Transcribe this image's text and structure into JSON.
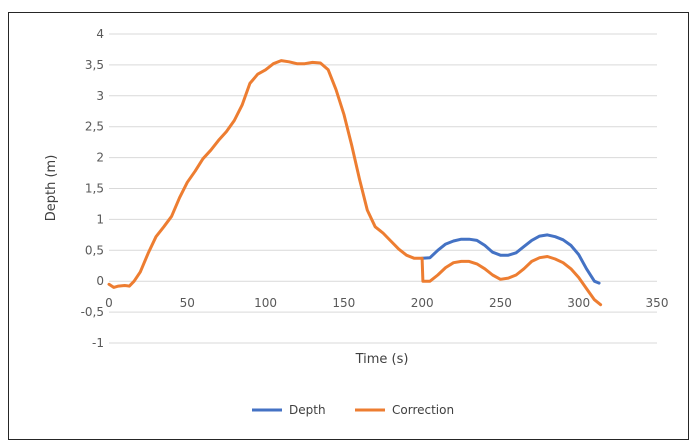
{
  "chart_data": {
    "type": "line",
    "title": "",
    "xlabel": "Time (s)",
    "ylabel": "Depth (m)",
    "xlim": [
      0,
      350
    ],
    "ylim": [
      -1,
      4
    ],
    "x_ticks": [
      "0",
      "50",
      "100",
      "150",
      "200",
      "250",
      "300",
      "350"
    ],
    "y_ticks": [
      "-1",
      "-0,5",
      "0",
      "0,5",
      "1",
      "1,5",
      "2",
      "2,5",
      "3",
      "3,5",
      "4"
    ],
    "grid": "horizontal",
    "legend_position": "bottom",
    "series": [
      {
        "name": "Depth",
        "color": "#4472c4",
        "points": [
          [
            200,
            0.37
          ],
          [
            205,
            0.38
          ],
          [
            210,
            0.5
          ],
          [
            215,
            0.6
          ],
          [
            220,
            0.65
          ],
          [
            225,
            0.68
          ],
          [
            230,
            0.68
          ],
          [
            235,
            0.66
          ],
          [
            240,
            0.58
          ],
          [
            245,
            0.47
          ],
          [
            250,
            0.42
          ],
          [
            255,
            0.42
          ],
          [
            260,
            0.46
          ],
          [
            265,
            0.56
          ],
          [
            270,
            0.66
          ],
          [
            275,
            0.73
          ],
          [
            280,
            0.75
          ],
          [
            285,
            0.72
          ],
          [
            290,
            0.67
          ],
          [
            295,
            0.58
          ],
          [
            300,
            0.43
          ],
          [
            305,
            0.2
          ],
          [
            310,
            0.0
          ],
          [
            313,
            -0.03
          ]
        ]
      },
      {
        "name": "Correction",
        "color": "#ed7d31",
        "points": [
          [
            0,
            -0.05
          ],
          [
            3,
            -0.1
          ],
          [
            6,
            -0.08
          ],
          [
            10,
            -0.07
          ],
          [
            13,
            -0.08
          ],
          [
            16,
            0.0
          ],
          [
            20,
            0.15
          ],
          [
            25,
            0.45
          ],
          [
            30,
            0.72
          ],
          [
            35,
            0.88
          ],
          [
            40,
            1.05
          ],
          [
            45,
            1.35
          ],
          [
            50,
            1.6
          ],
          [
            55,
            1.78
          ],
          [
            60,
            1.98
          ],
          [
            65,
            2.12
          ],
          [
            70,
            2.28
          ],
          [
            75,
            2.42
          ],
          [
            80,
            2.6
          ],
          [
            85,
            2.85
          ],
          [
            90,
            3.2
          ],
          [
            95,
            3.35
          ],
          [
            100,
            3.42
          ],
          [
            105,
            3.52
          ],
          [
            110,
            3.57
          ],
          [
            115,
            3.55
          ],
          [
            120,
            3.52
          ],
          [
            125,
            3.52
          ],
          [
            130,
            3.54
          ],
          [
            135,
            3.53
          ],
          [
            140,
            3.42
          ],
          [
            145,
            3.1
          ],
          [
            150,
            2.7
          ],
          [
            155,
            2.2
          ],
          [
            160,
            1.65
          ],
          [
            165,
            1.15
          ],
          [
            170,
            0.88
          ],
          [
            175,
            0.78
          ],
          [
            180,
            0.65
          ],
          [
            185,
            0.52
          ],
          [
            190,
            0.42
          ],
          [
            195,
            0.37
          ],
          [
            200,
            0.37
          ],
          [
            200.5,
            0.0
          ],
          [
            205,
            0.0
          ],
          [
            210,
            0.1
          ],
          [
            215,
            0.22
          ],
          [
            220,
            0.3
          ],
          [
            225,
            0.32
          ],
          [
            230,
            0.32
          ],
          [
            235,
            0.28
          ],
          [
            240,
            0.2
          ],
          [
            245,
            0.1
          ],
          [
            250,
            0.03
          ],
          [
            255,
            0.05
          ],
          [
            260,
            0.1
          ],
          [
            265,
            0.2
          ],
          [
            270,
            0.32
          ],
          [
            275,
            0.38
          ],
          [
            280,
            0.4
          ],
          [
            285,
            0.36
          ],
          [
            290,
            0.3
          ],
          [
            295,
            0.2
          ],
          [
            300,
            0.06
          ],
          [
            305,
            -0.12
          ],
          [
            310,
            -0.3
          ],
          [
            314,
            -0.38
          ]
        ]
      }
    ]
  }
}
